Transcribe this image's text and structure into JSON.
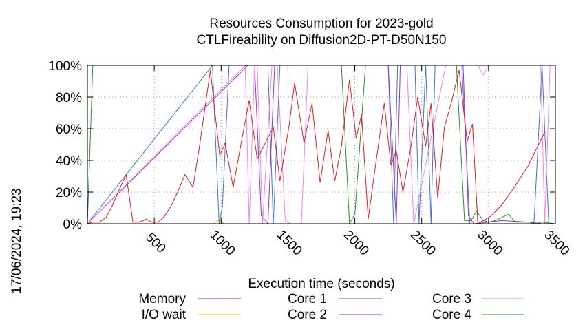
{
  "chart_data": {
    "type": "line",
    "title": "Resources Consumption for 2023-gold",
    "subtitle": "CTLFireability on Diffusion2D-PT-D50N150",
    "xlabel": "Execution time (seconds)",
    "ylabel": "",
    "side_label": "17/06/2024, 19:23",
    "xlim": [
      0,
      3500
    ],
    "ylim": [
      0,
      100
    ],
    "x_ticks": [
      500,
      1000,
      1500,
      2000,
      2500,
      3000,
      3500
    ],
    "x_tick_labels": [
      "500",
      "1000",
      "1500",
      "2000",
      "2500",
      "3000",
      "3500"
    ],
    "y_ticks": [
      0,
      20,
      40,
      60,
      80,
      100
    ],
    "y_tick_labels": [
      "0%",
      "20%",
      "40%",
      "60%",
      "80%",
      "100%"
    ],
    "grid": true,
    "legend_position": "bottom",
    "series": [
      {
        "name": "Memory",
        "color": "#e41a1c",
        "x": [
          0,
          40,
          90,
          140,
          190,
          240,
          290,
          340,
          390,
          440,
          480,
          530,
          580,
          630,
          680,
          730,
          790,
          840,
          920,
          990,
          1030,
          1090,
          1150,
          1210,
          1270,
          1330,
          1390,
          1440,
          1510,
          1550,
          1620,
          1680,
          1740,
          1800,
          1850,
          1900,
          1960,
          2010,
          2050,
          2100,
          2150,
          2220,
          2270,
          2310,
          2360,
          2420,
          2470,
          2530,
          2570,
          2620,
          2670,
          2720,
          2780,
          2840,
          2880,
          2920,
          2960,
          3020,
          3100,
          3200,
          3300,
          3420
        ],
        "values": [
          0,
          1,
          1,
          4,
          12,
          22,
          31,
          1,
          1,
          3,
          1,
          1,
          5,
          12,
          21,
          31,
          23,
          50,
          97,
          43,
          51,
          23,
          51,
          78,
          41,
          51,
          61,
          27,
          63,
          89,
          51,
          76,
          26,
          59,
          27,
          49,
          91,
          54,
          69,
          3,
          34,
          76,
          37,
          46,
          20,
          49,
          80,
          49,
          76,
          16,
          61,
          76,
          97,
          52,
          63,
          0,
          2,
          5,
          12,
          24,
          37,
          58
        ]
      },
      {
        "name": "I/O wait",
        "color": "#ffb300",
        "x": [
          0,
          940,
          960,
          980,
          1000,
          1020,
          3500
        ],
        "values": [
          0,
          0,
          1,
          2,
          2,
          0,
          0
        ]
      },
      {
        "name": "Core 1",
        "color": "#4472c4",
        "x": [
          0,
          935,
          985,
          1010,
          1060,
          1080,
          1110,
          1160,
          1230,
          1290,
          1350,
          1390,
          1440,
          2000,
          2050,
          2160,
          2250,
          2290,
          2320,
          2400,
          2450,
          2480,
          2530,
          2570,
          2600,
          2660,
          2800,
          2860,
          2900,
          3020,
          3060,
          3200,
          3340,
          3400,
          3450,
          3500
        ],
        "values": [
          0,
          100,
          0,
          11,
          100,
          100,
          100,
          100,
          100,
          100,
          100,
          0,
          100,
          100,
          100,
          100,
          100,
          0,
          100,
          100,
          100,
          0,
          100,
          0,
          100,
          100,
          100,
          0,
          0,
          0,
          0,
          0,
          0,
          100,
          0,
          0
        ]
      },
      {
        "name": "Core 2",
        "color": "#9932cc",
        "x": [
          0,
          1200,
          1250,
          1300,
          1350,
          1400,
          1460,
          2200,
          2250,
          2290,
          2310,
          2340,
          2380,
          2780,
          2810,
          2850,
          2890,
          3000,
          3100,
          3300,
          3400,
          3500
        ],
        "values": [
          0,
          100,
          100,
          5,
          0,
          100,
          100,
          100,
          100,
          35,
          0,
          100,
          100,
          100,
          100,
          5,
          0,
          1,
          2,
          1,
          0,
          0
        ]
      },
      {
        "name": "Core 3",
        "color": "#ee82ee",
        "x": [
          0,
          1180,
          1210,
          1250,
          1270,
          1310,
          1380,
          1420,
          1480,
          1520,
          1600,
          1650,
          1700,
          1950,
          2050,
          2100,
          2150,
          2200,
          2260,
          2310,
          2390,
          2440,
          2680,
          2820,
          2840,
          2880,
          2920,
          2960,
          3000,
          3050,
          3330,
          3390,
          3420,
          3460,
          3500
        ],
        "values": [
          0,
          100,
          0,
          100,
          100,
          0,
          100,
          100,
          2,
          0,
          0,
          100,
          100,
          100,
          100,
          100,
          100,
          100,
          100,
          100,
          100,
          0,
          100,
          100,
          100,
          100,
          100,
          94,
          100,
          100,
          100,
          100,
          0,
          100,
          100
        ]
      },
      {
        "name": "Core 4",
        "color": "#2e8b2e",
        "x": [
          0,
          40,
          60,
          1850,
          1900,
          1960,
          2000,
          2080,
          2760,
          2820,
          2870,
          2910,
          2960,
          3000,
          3050,
          3100,
          3150,
          3200,
          3250,
          3300,
          3350,
          3400,
          3500
        ],
        "values": [
          0,
          100,
          100,
          100,
          100,
          0,
          6,
          100,
          100,
          2,
          2,
          8,
          2,
          1,
          2,
          4,
          6,
          1,
          1,
          1,
          0,
          1,
          0
        ]
      }
    ]
  }
}
